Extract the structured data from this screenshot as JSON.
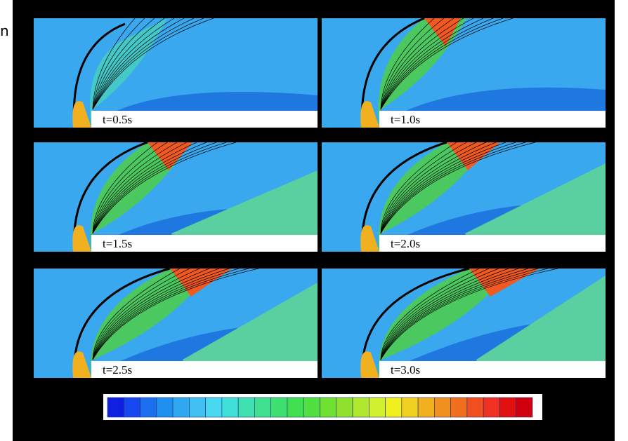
{
  "header": {
    "fragment": "n"
  },
  "panels": [
    {
      "label": "t=0.5s"
    },
    {
      "label": "t=1.0s"
    },
    {
      "label": "t=1.5s"
    },
    {
      "label": "t=2.0s"
    },
    {
      "label": "t=2.5s"
    },
    {
      "label": "t=3.0s"
    }
  ]
}
